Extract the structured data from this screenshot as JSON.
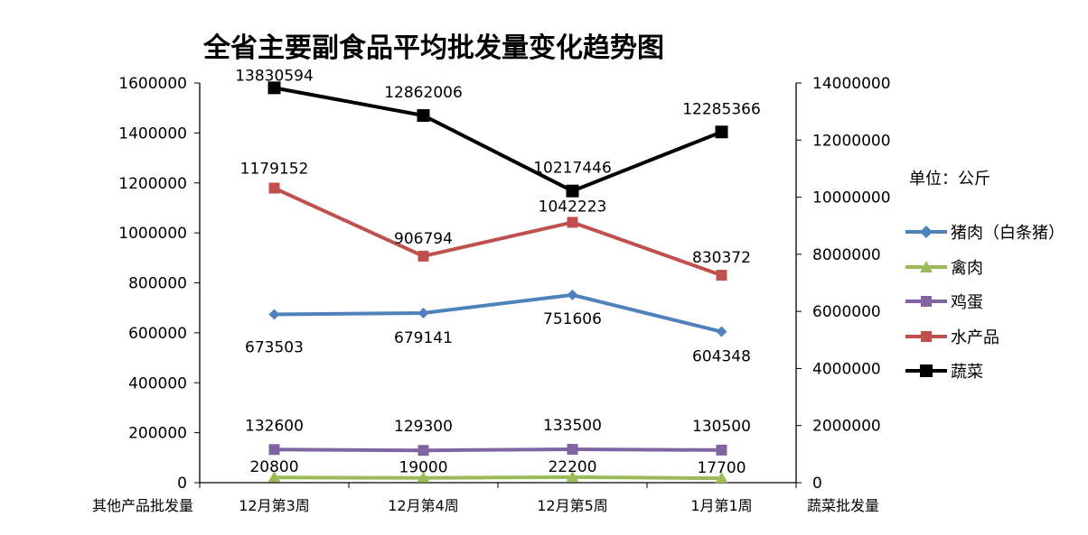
{
  "chart_data": {
    "type": "line",
    "title": "全省主要副食品平均批发量变化趋势图",
    "unit_note": "单位：公斤",
    "categories": [
      "12月第3周",
      "12月第4周",
      "12月第5周",
      "1月第1周"
    ],
    "y_left": {
      "label": "其他产品批发量",
      "min": 0,
      "max": 1600000,
      "step": 200000,
      "ticks": [
        "0",
        "200000",
        "400000",
        "600000",
        "800000",
        "1000000",
        "1200000",
        "1400000",
        "1600000"
      ]
    },
    "y_right": {
      "label": "蔬菜批发量",
      "min": 0,
      "max": 14000000,
      "step": 2000000,
      "ticks": [
        "0",
        "2000000",
        "4000000",
        "6000000",
        "8000000",
        "10000000",
        "12000000",
        "14000000"
      ]
    },
    "grid": false,
    "legend_position": "right",
    "series": [
      {
        "name": "猪肉（白条猪）",
        "axis": "left",
        "color": "#4f81bd",
        "marker": "diamond",
        "values": [
          673503,
          679141,
          751606,
          604348
        ],
        "labels": [
          "673503",
          "679141",
          "751606",
          "604348"
        ]
      },
      {
        "name": "禽肉",
        "axis": "left",
        "color": "#9bbb59",
        "marker": "triangle",
        "values": [
          20800,
          19000,
          22200,
          17700
        ],
        "labels": [
          "20800",
          "19000",
          "22200",
          "17700"
        ]
      },
      {
        "name": "鸡蛋",
        "axis": "left",
        "color": "#8064a2",
        "marker": "square",
        "values": [
          132600,
          129300,
          133500,
          130500
        ],
        "labels": [
          "132600",
          "129300",
          "133500",
          "130500"
        ]
      },
      {
        "name": "水产品",
        "axis": "left",
        "color": "#c0504d",
        "marker": "square",
        "values": [
          1179152,
          906794,
          1042223,
          830372
        ],
        "labels": [
          "1179152",
          "906794",
          "1042223",
          "830372"
        ]
      },
      {
        "name": "蔬菜",
        "axis": "right",
        "color": "#000000",
        "marker": "square",
        "values": [
          13830594,
          12862006,
          10217446,
          12285366
        ],
        "labels": [
          "13830594",
          "12862006",
          "10217446",
          "12285366"
        ]
      }
    ]
  }
}
